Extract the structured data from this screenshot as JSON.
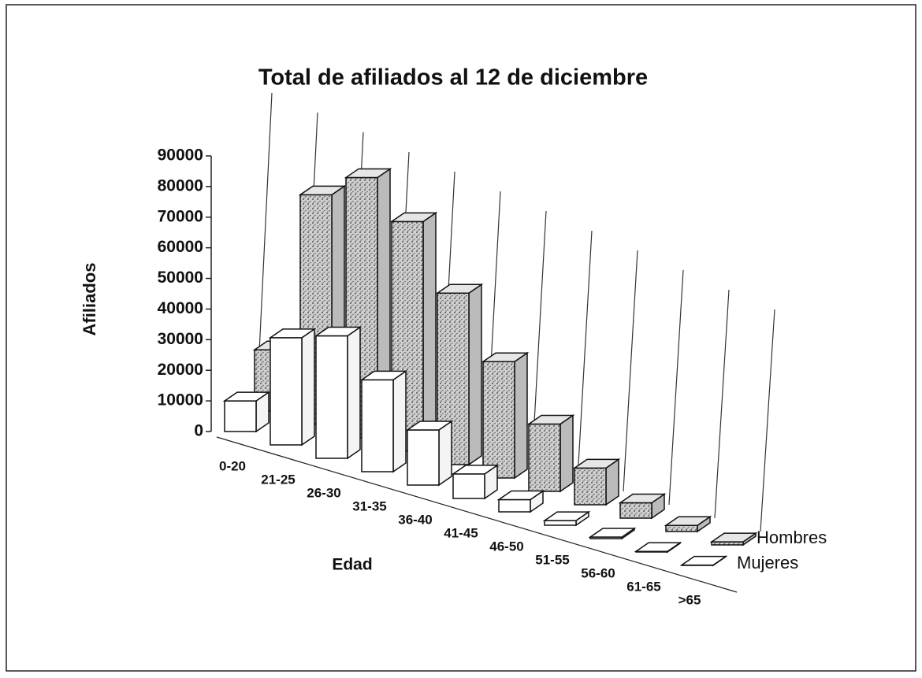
{
  "chart_data": {
    "type": "bar3d",
    "title": "Total de afiliados al 12 de diciembre",
    "y_label": "Afiliados",
    "x_label": "Edad",
    "categories": [
      "0-20",
      "21-25",
      "26-30",
      "31-35",
      "36-40",
      "41-45",
      "46-50",
      "51-55",
      "56-60",
      "61-65",
      ">65"
    ],
    "series": [
      {
        "name": "Hombres",
        "color": "#d8d8d8",
        "values": [
          20000,
          75000,
          85000,
          75000,
          56000,
          38000,
          22000,
          12000,
          5000,
          2000,
          1000
        ]
      },
      {
        "name": "Mujeres",
        "color": "#ffffff",
        "values": [
          10000,
          35000,
          40000,
          30000,
          18000,
          8000,
          4000,
          1500,
          500,
          200,
          100
        ]
      }
    ],
    "ylim": [
      0,
      90000
    ],
    "yticks": [
      0,
      10000,
      20000,
      30000,
      40000,
      50000,
      60000,
      70000,
      80000,
      90000
    ]
  }
}
